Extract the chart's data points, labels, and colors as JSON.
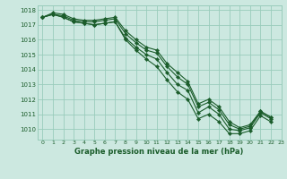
{
  "xlabel": "Graphe pression niveau de la mer (hPa)",
  "xlim": [
    -0.5,
    23
  ],
  "ylim": [
    1009.3,
    1018.3
  ],
  "yticks": [
    1010,
    1011,
    1012,
    1013,
    1014,
    1015,
    1016,
    1017,
    1018
  ],
  "xticks": [
    0,
    1,
    2,
    3,
    4,
    5,
    6,
    7,
    8,
    9,
    10,
    11,
    12,
    13,
    14,
    15,
    16,
    17,
    18,
    19,
    20,
    21,
    22,
    23
  ],
  "bg_color": "#cce8e0",
  "grid_color": "#99ccbb",
  "line_color": "#1a5c2a",
  "series": [
    [
      1017.5,
      1017.7,
      1017.5,
      1017.2,
      1017.1,
      1017.0,
      1017.1,
      1017.2,
      1016.1,
      1015.5,
      1015.0,
      1014.7,
      1013.8,
      1013.0,
      1012.6,
      1011.1,
      1011.5,
      1011.0,
      1010.0,
      1009.9,
      1010.1,
      1011.1,
      1010.7,
      null
    ],
    [
      1017.5,
      1017.7,
      1017.5,
      1017.2,
      1017.1,
      1017.0,
      1017.1,
      1017.2,
      1016.0,
      1015.3,
      1014.7,
      1014.2,
      1013.3,
      1012.5,
      1012.0,
      1010.7,
      1011.0,
      1010.5,
      1009.7,
      1009.7,
      1009.9,
      1010.9,
      1010.5,
      null
    ],
    [
      1017.5,
      1017.7,
      1017.6,
      1017.3,
      1017.2,
      1017.2,
      1017.3,
      1017.4,
      1016.4,
      1015.8,
      1015.3,
      1015.1,
      1014.2,
      1013.5,
      1013.0,
      1011.5,
      1011.8,
      1011.3,
      1010.3,
      1010.0,
      1010.2,
      1011.2,
      1010.8,
      null
    ],
    [
      1017.5,
      1017.8,
      1017.7,
      1017.4,
      1017.3,
      1017.3,
      1017.4,
      1017.5,
      1016.6,
      1016.0,
      1015.5,
      1015.3,
      1014.4,
      1013.8,
      1013.2,
      1011.7,
      1012.0,
      1011.5,
      1010.5,
      1010.1,
      1010.3,
      1011.2,
      1010.8,
      null
    ]
  ]
}
